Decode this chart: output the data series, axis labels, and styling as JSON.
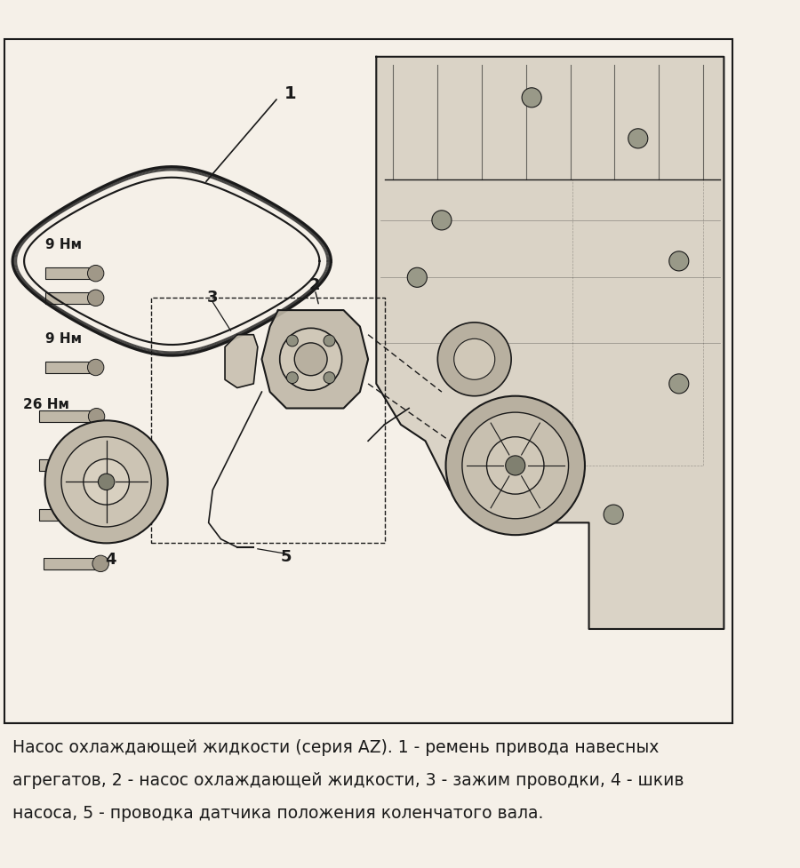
{
  "title": "",
  "background_color": "#f5f0e8",
  "border_color": "#222222",
  "caption_line1": "Насос охлаждающей жидкости (серия AZ). 1 - ремень привода навесных",
  "caption_line2": "агрегатов, 2 - насос охлаждающей жидкости, 3 - зажим проводки, 4 - шкив",
  "caption_line3": "насоса, 5 - проводка датчика положения коленчатого вала.",
  "caption_fontsize": 13.5,
  "label_1": "1",
  "label_2": "2",
  "label_3": "3",
  "label_4": "4",
  "label_5": "5",
  "torque_1": "9 Нм",
  "torque_2": "9 Нм",
  "torque_3": "26 Нм",
  "line_color": "#1a1a1a",
  "fill_color": "#d8d0c0",
  "engine_color": "#cccccc"
}
